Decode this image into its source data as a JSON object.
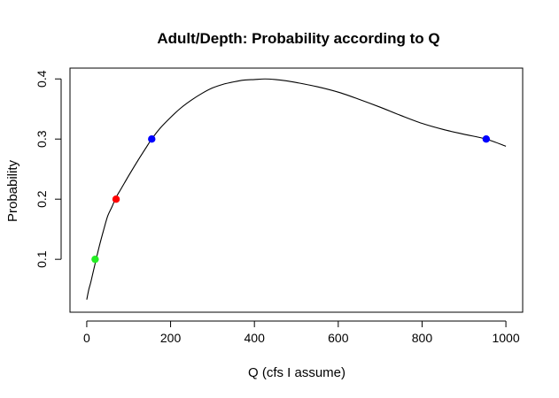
{
  "chart_data": {
    "type": "line",
    "title": "Adult/Depth: Probability according to Q",
    "xlabel": "Q (cfs I assume)",
    "ylabel": "Probability",
    "xlim": [
      -40,
      1040
    ],
    "ylim": [
      0.012,
      0.418
    ],
    "x_ticks": [
      0,
      200,
      400,
      600,
      800,
      1000
    ],
    "y_ticks": [
      0.1,
      0.2,
      0.3,
      0.4
    ],
    "x_tick_labels": [
      "0",
      "200",
      "400",
      "600",
      "800",
      "1000"
    ],
    "y_tick_labels": [
      "0.1",
      "0.2",
      "0.3",
      "0.4"
    ],
    "series": [
      {
        "name": "probability curve",
        "color": "#000000",
        "x": [
          0,
          5,
          10,
          20,
          30,
          40,
          50,
          60,
          70,
          80,
          90,
          100,
          120,
          140,
          155,
          175,
          200,
          225,
          250,
          275,
          300,
          325,
          350,
          375,
          400,
          425,
          450,
          475,
          500,
          550,
          600,
          650,
          700,
          750,
          800,
          850,
          900,
          953,
          1000
        ],
        "y": [
          0.033,
          0.05,
          0.063,
          0.093,
          0.122,
          0.148,
          0.172,
          0.187,
          0.203,
          0.215,
          0.227,
          0.239,
          0.262,
          0.284,
          0.3,
          0.318,
          0.336,
          0.352,
          0.365,
          0.376,
          0.385,
          0.391,
          0.395,
          0.398,
          0.399,
          0.4,
          0.399,
          0.397,
          0.394,
          0.387,
          0.378,
          0.366,
          0.353,
          0.339,
          0.326,
          0.316,
          0.308,
          0.3,
          0.288
        ]
      }
    ],
    "points": [
      {
        "name": "green",
        "x": 20,
        "y": 0.1,
        "color": "#22ee22"
      },
      {
        "name": "red",
        "x": 70,
        "y": 0.2,
        "color": "#ff0000"
      },
      {
        "name": "blue-left",
        "x": 155,
        "y": 0.3,
        "color": "#0000ff"
      },
      {
        "name": "blue-right",
        "x": 953,
        "y": 0.3,
        "color": "#0000ff"
      }
    ]
  }
}
